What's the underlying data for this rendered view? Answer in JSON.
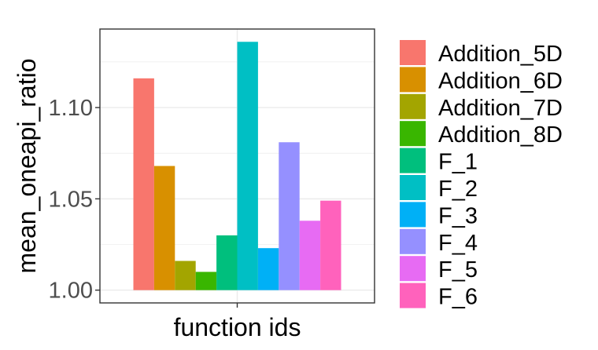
{
  "chart_data": {
    "type": "bar",
    "title": "",
    "xlabel": "function ids",
    "ylabel": "mean_oneapi_ratio",
    "categories": [
      ""
    ],
    "ylim": [
      0.993,
      1.143
    ],
    "yticks": [
      1.0,
      1.05,
      1.1
    ],
    "ytick_labels": [
      "1.00",
      "1.05",
      "1.10"
    ],
    "baseline": 1.0,
    "grid": true,
    "legend_position": "right",
    "series": [
      {
        "name": "Addition_5D",
        "value": 1.116,
        "color": "#F8766D"
      },
      {
        "name": "Addition_6D",
        "value": 1.068,
        "color": "#D89000"
      },
      {
        "name": "Addition_7D",
        "value": 1.016,
        "color": "#A3A500"
      },
      {
        "name": "Addition_8D",
        "value": 1.01,
        "color": "#39B600"
      },
      {
        "name": "F_1",
        "value": 1.03,
        "color": "#00BF7D"
      },
      {
        "name": "F_2",
        "value": 1.136,
        "color": "#00BFC4"
      },
      {
        "name": "F_3",
        "value": 1.023,
        "color": "#00B0F6"
      },
      {
        "name": "F_4",
        "value": 1.081,
        "color": "#9590FF"
      },
      {
        "name": "F_5",
        "value": 1.038,
        "color": "#E76BF3"
      },
      {
        "name": "F_6",
        "value": 1.049,
        "color": "#FF62BC"
      }
    ]
  }
}
